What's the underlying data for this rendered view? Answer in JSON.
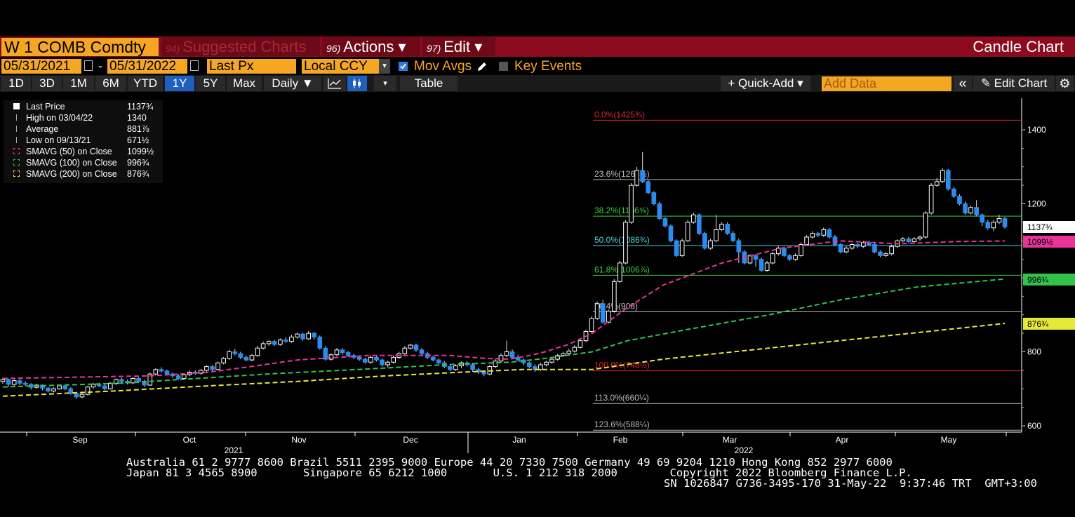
{
  "header": {
    "ticker": "W 1 COMB Comdty",
    "menus": [
      {
        "num": "94)",
        "label": "Suggested Charts"
      },
      {
        "num": "96)",
        "label": "Actions ▾"
      },
      {
        "num": "97)",
        "label": "Edit ▾"
      }
    ],
    "chart_type_label": "Candle Chart"
  },
  "controls": {
    "start_date": "05/31/2021",
    "date_separator": "-",
    "end_date": "05/31/2022",
    "field": "Last Px",
    "currency": "Local CCY",
    "mov_avgs_label": "Mov Avgs",
    "key_events_label": "Key Events",
    "mov_avgs_checked": true,
    "key_events_checked": false
  },
  "toolbar": {
    "ranges": [
      "1D",
      "3D",
      "1M",
      "6M",
      "YTD",
      "1Y",
      "5Y",
      "Max"
    ],
    "selected_range": "1Y",
    "period": "Daily ▼",
    "table_label": "Table",
    "quick_add_label": "+ Quick-Add ▾",
    "add_data_placeholder": "Add Data",
    "collapse_glyph": "«",
    "edit_chart_label": "✎ Edit Chart",
    "settings_glyph": "⚙"
  },
  "legend": [
    {
      "name": "Last Price",
      "value": "1137¾",
      "marker": "square",
      "color": "#ffffff"
    },
    {
      "name": "High on 03/04/22",
      "value": "1340",
      "marker": "high",
      "color": "#aaaaaa"
    },
    {
      "name": "Average",
      "value": "881⅞",
      "marker": "avg",
      "color": "#aaaaaa"
    },
    {
      "name": "Low on 09/13/21",
      "value": "671½",
      "marker": "low",
      "color": "#aaaaaa"
    },
    {
      "name": "SMAVG (50)  on Close",
      "value": "1099½",
      "marker": "box",
      "color": "#e8339b"
    },
    {
      "name": "SMAVG (100)  on Close",
      "value": "996¾",
      "marker": "box",
      "color": "#33c24d"
    },
    {
      "name": "SMAVG (200)  on Close",
      "value": "876¾",
      "marker": "box",
      "color": "#e8e83a"
    }
  ],
  "chart_data": {
    "type": "candlestick",
    "y_axis": {
      "min": 580,
      "max": 1440,
      "ticks": [
        600,
        800,
        1000,
        1200,
        1400
      ],
      "tick_labels": [
        "600",
        "800",
        "",
        "1200",
        "1400"
      ],
      "position": "right"
    },
    "x_axis": {
      "months": [
        "Sep",
        "Oct",
        "Nov",
        "Dec",
        "Jan",
        "Feb",
        "Mar",
        "Apr",
        "May"
      ],
      "years": [
        "2021",
        "2022"
      ]
    },
    "fibonacci": [
      {
        "label": "0.0%(1425¾)",
        "value": 1425.75,
        "color": "#e0203a"
      },
      {
        "label": "23.6%(1265½)",
        "value": 1265.5,
        "color": "#bbbbbb"
      },
      {
        "label": "38.2%(1166⅝)",
        "value": 1166.6,
        "color": "#3fcf3f"
      },
      {
        "label": "50.0%(1086¾)",
        "value": 1086.75,
        "color": "#4fd2e6"
      },
      {
        "label": "61.8%(1006⅞)",
        "value": 1006.9,
        "color": "#3fcf3f"
      },
      {
        "label": "76.4%(908)",
        "value": 908,
        "color": "#bbbbbb"
      },
      {
        "label": "100.0%(748½)",
        "value": 748.5,
        "color": "#e0203a"
      },
      {
        "label": "113.0%(660¼)",
        "value": 660.25,
        "color": "#bbbbbb"
      },
      {
        "label": "123.6%(588¼)",
        "value": 588.25,
        "color": "#bbbbbb"
      }
    ],
    "price_tags": [
      {
        "label": "1137¾",
        "value": 1137.75,
        "bg": "#ffffff",
        "fg": "#000000"
      },
      {
        "label": "1099½",
        "value": 1099.5,
        "bg": "#e8339b",
        "fg": "#000000"
      },
      {
        "label": "996¾",
        "value": 996.75,
        "bg": "#33c24d",
        "fg": "#000000"
      },
      {
        "label": "876¾",
        "value": 876.75,
        "bg": "#e8e83a",
        "fg": "#000000"
      }
    ],
    "colors": {
      "up": "#ffffff",
      "down": "#2a8cf0",
      "sma50": "#e8339b",
      "sma100": "#33c24d",
      "sma200": "#e8e83a"
    },
    "candles": [
      [
        720,
        725,
        730,
        714
      ],
      [
        725,
        712,
        728,
        706
      ],
      [
        712,
        722,
        726,
        708
      ],
      [
        722,
        715,
        726,
        710
      ],
      [
        715,
        712,
        720,
        708
      ],
      [
        712,
        704,
        715,
        698
      ],
      [
        704,
        710,
        714,
        700
      ],
      [
        710,
        702,
        712,
        696
      ],
      [
        702,
        694,
        705,
        690
      ],
      [
        694,
        700,
        704,
        690
      ],
      [
        700,
        708,
        712,
        698
      ],
      [
        708,
        700,
        712,
        696
      ],
      [
        700,
        688,
        704,
        684
      ],
      [
        688,
        678,
        692,
        672
      ],
      [
        678,
        685,
        690,
        674
      ],
      [
        685,
        705,
        708,
        682
      ],
      [
        705,
        712,
        716,
        700
      ],
      [
        712,
        708,
        716,
        704
      ],
      [
        708,
        700,
        712,
        696
      ],
      [
        700,
        715,
        718,
        698
      ],
      [
        715,
        725,
        728,
        710
      ],
      [
        725,
        720,
        730,
        716
      ],
      [
        720,
        716,
        724,
        712
      ],
      [
        716,
        728,
        732,
        712
      ],
      [
        728,
        720,
        732,
        716
      ],
      [
        720,
        710,
        724,
        706
      ],
      [
        710,
        740,
        744,
        708
      ],
      [
        740,
        752,
        756,
        736
      ],
      [
        752,
        748,
        758,
        744
      ],
      [
        748,
        740,
        752,
        736
      ],
      [
        740,
        735,
        744,
        730
      ],
      [
        735,
        728,
        740,
        724
      ],
      [
        728,
        738,
        742,
        724
      ],
      [
        738,
        745,
        750,
        734
      ],
      [
        745,
        742,
        750,
        738
      ],
      [
        742,
        750,
        754,
        738
      ],
      [
        750,
        760,
        764,
        746
      ],
      [
        760,
        752,
        764,
        748
      ],
      [
        752,
        770,
        774,
        750
      ],
      [
        770,
        782,
        786,
        766
      ],
      [
        782,
        800,
        806,
        778
      ],
      [
        800,
        795,
        808,
        790
      ],
      [
        795,
        785,
        800,
        780
      ],
      [
        785,
        778,
        790,
        774
      ],
      [
        778,
        790,
        794,
        774
      ],
      [
        790,
        810,
        816,
        786
      ],
      [
        810,
        822,
        828,
        806
      ],
      [
        822,
        828,
        832,
        816
      ],
      [
        828,
        820,
        832,
        816
      ],
      [
        820,
        832,
        836,
        816
      ],
      [
        832,
        828,
        840,
        824
      ],
      [
        828,
        840,
        846,
        824
      ],
      [
        840,
        848,
        852,
        836
      ],
      [
        848,
        835,
        852,
        830
      ],
      [
        835,
        850,
        856,
        832
      ],
      [
        850,
        840,
        854,
        832
      ],
      [
        840,
        810,
        844,
        806
      ],
      [
        810,
        780,
        816,
        776
      ],
      [
        780,
        792,
        796,
        776
      ],
      [
        792,
        805,
        810,
        788
      ],
      [
        805,
        798,
        810,
        792
      ],
      [
        798,
        790,
        802,
        786
      ],
      [
        790,
        785,
        795,
        780
      ],
      [
        785,
        780,
        790,
        776
      ],
      [
        780,
        772,
        784,
        768
      ],
      [
        772,
        785,
        790,
        768
      ],
      [
        785,
        778,
        790,
        774
      ],
      [
        778,
        765,
        782,
        760
      ],
      [
        765,
        772,
        776,
        758
      ],
      [
        772,
        785,
        790,
        768
      ],
      [
        785,
        795,
        800,
        780
      ],
      [
        795,
        810,
        816,
        790
      ],
      [
        810,
        818,
        822,
        806
      ],
      [
        818,
        805,
        822,
        800
      ],
      [
        805,
        795,
        810,
        790
      ],
      [
        795,
        785,
        800,
        780
      ],
      [
        785,
        778,
        790,
        774
      ],
      [
        778,
        770,
        782,
        765
      ],
      [
        770,
        760,
        775,
        756
      ],
      [
        760,
        752,
        766,
        748
      ],
      [
        752,
        762,
        766,
        748
      ],
      [
        762,
        770,
        774,
        756
      ],
      [
        770,
        765,
        775,
        760
      ],
      [
        765,
        752,
        770,
        746
      ],
      [
        752,
        745,
        756,
        740
      ],
      [
        745,
        740,
        750,
        734
      ],
      [
        740,
        760,
        764,
        736
      ],
      [
        760,
        775,
        780,
        756
      ],
      [
        775,
        790,
        796,
        770
      ],
      [
        790,
        800,
        830,
        786
      ],
      [
        800,
        785,
        806,
        780
      ],
      [
        785,
        778,
        792,
        774
      ],
      [
        778,
        770,
        782,
        764
      ],
      [
        770,
        760,
        774,
        756
      ],
      [
        760,
        752,
        766,
        746
      ],
      [
        752,
        765,
        770,
        748
      ],
      [
        765,
        772,
        776,
        760
      ],
      [
        772,
        780,
        786,
        768
      ],
      [
        780,
        790,
        794,
        776
      ],
      [
        790,
        795,
        800,
        786
      ],
      [
        795,
        802,
        808,
        790
      ],
      [
        802,
        812,
        818,
        798
      ],
      [
        812,
        830,
        836,
        808
      ],
      [
        830,
        855,
        860,
        826
      ],
      [
        855,
        890,
        896,
        850
      ],
      [
        890,
        930,
        936,
        886
      ],
      [
        930,
        880,
        940,
        876
      ],
      [
        880,
        910,
        914,
        876
      ],
      [
        910,
        990,
        996,
        906
      ],
      [
        990,
        1040,
        1046,
        986
      ],
      [
        1040,
        1150,
        1156,
        1036
      ],
      [
        1150,
        1250,
        1256,
        1146
      ],
      [
        1250,
        1290,
        1300,
        1246
      ],
      [
        1290,
        1260,
        1340,
        1256
      ],
      [
        1260,
        1230,
        1264,
        1226
      ],
      [
        1230,
        1200,
        1234,
        1196
      ],
      [
        1200,
        1160,
        1206,
        1156
      ],
      [
        1160,
        1140,
        1164,
        1136
      ],
      [
        1140,
        1100,
        1144,
        1096
      ],
      [
        1100,
        1060,
        1104,
        1056
      ],
      [
        1060,
        1100,
        1106,
        1056
      ],
      [
        1100,
        1150,
        1156,
        1096
      ],
      [
        1150,
        1170,
        1176,
        1146
      ],
      [
        1170,
        1120,
        1174,
        1116
      ],
      [
        1120,
        1080,
        1124,
        1076
      ],
      [
        1080,
        1100,
        1106,
        1076
      ],
      [
        1100,
        1130,
        1170,
        1096
      ],
      [
        1130,
        1145,
        1150,
        1126
      ],
      [
        1145,
        1120,
        1150,
        1116
      ],
      [
        1120,
        1100,
        1126,
        1096
      ],
      [
        1100,
        1070,
        1106,
        1040
      ],
      [
        1070,
        1040,
        1074,
        1036
      ],
      [
        1040,
        1060,
        1064,
        1036
      ],
      [
        1060,
        1050,
        1064,
        1030
      ],
      [
        1050,
        1020,
        1054,
        1016
      ],
      [
        1020,
        1040,
        1046,
        1016
      ],
      [
        1040,
        1065,
        1070,
        1036
      ],
      [
        1065,
        1080,
        1086,
        1060
      ],
      [
        1080,
        1060,
        1084,
        1056
      ],
      [
        1060,
        1050,
        1064,
        1046
      ],
      [
        1050,
        1060,
        1066,
        1046
      ],
      [
        1060,
        1090,
        1096,
        1056
      ],
      [
        1090,
        1110,
        1116,
        1086
      ],
      [
        1110,
        1120,
        1126,
        1106
      ],
      [
        1120,
        1115,
        1124,
        1110
      ],
      [
        1115,
        1130,
        1136,
        1110
      ],
      [
        1130,
        1110,
        1134,
        1106
      ],
      [
        1110,
        1090,
        1116,
        1086
      ],
      [
        1090,
        1070,
        1094,
        1066
      ],
      [
        1070,
        1080,
        1086,
        1066
      ],
      [
        1080,
        1090,
        1094,
        1076
      ],
      [
        1090,
        1085,
        1094,
        1080
      ],
      [
        1085,
        1095,
        1100,
        1080
      ],
      [
        1095,
        1090,
        1100,
        1086
      ],
      [
        1090,
        1070,
        1094,
        1066
      ],
      [
        1070,
        1060,
        1074,
        1056
      ],
      [
        1060,
        1065,
        1070,
        1056
      ],
      [
        1065,
        1085,
        1090,
        1060
      ],
      [
        1085,
        1100,
        1104,
        1080
      ],
      [
        1100,
        1105,
        1110,
        1096
      ],
      [
        1105,
        1098,
        1110,
        1094
      ],
      [
        1098,
        1105,
        1110,
        1094
      ],
      [
        1105,
        1110,
        1114,
        1100
      ],
      [
        1110,
        1175,
        1180,
        1106
      ],
      [
        1175,
        1250,
        1256,
        1170
      ],
      [
        1250,
        1260,
        1270,
        1246
      ],
      [
        1260,
        1290,
        1296,
        1256
      ],
      [
        1290,
        1240,
        1294,
        1236
      ],
      [
        1240,
        1220,
        1246,
        1216
      ],
      [
        1220,
        1200,
        1226,
        1196
      ],
      [
        1200,
        1175,
        1206,
        1170
      ],
      [
        1175,
        1190,
        1196,
        1170
      ],
      [
        1190,
        1170,
        1210,
        1166
      ],
      [
        1170,
        1150,
        1174,
        1140
      ],
      [
        1150,
        1135,
        1156,
        1130
      ],
      [
        1135,
        1150,
        1156,
        1126
      ],
      [
        1150,
        1160,
        1170,
        1145
      ],
      [
        1160,
        1137.75,
        1165,
        1133
      ]
    ],
    "sma": {
      "sma50": [
        [
          0,
          728
        ],
        [
          0.25,
          735
        ],
        [
          0.35,
          745
        ],
        [
          0.42,
          760
        ],
        [
          0.5,
          778
        ],
        [
          0.62,
          790
        ],
        [
          0.7,
          790
        ],
        [
          0.76,
          790
        ],
        [
          0.82,
          782
        ],
        [
          0.86,
          780
        ],
        [
          0.9,
          792
        ],
        [
          0.92,
          800
        ],
        [
          0.96,
          820
        ],
        [
          1.0,
          850
        ],
        [
          1.06,
          920
        ],
        [
          1.12,
          980
        ],
        [
          1.22,
          1040
        ],
        [
          1.32,
          1080
        ],
        [
          1.42,
          1100
        ],
        [
          1.52,
          1092
        ],
        [
          1.62,
          1098
        ],
        [
          1.7,
          1099.5
        ]
      ],
      "sma100": [
        [
          0,
          705
        ],
        [
          0.2,
          715
        ],
        [
          0.3,
          725
        ],
        [
          0.45,
          740
        ],
        [
          0.6,
          752
        ],
        [
          0.75,
          765
        ],
        [
          0.86,
          772
        ],
        [
          0.92,
          782
        ],
        [
          1.0,
          800
        ],
        [
          1.06,
          830
        ],
        [
          1.16,
          860
        ],
        [
          1.3,
          900
        ],
        [
          1.42,
          940
        ],
        [
          1.55,
          975
        ],
        [
          1.7,
          996.75
        ]
      ],
      "sma200": [
        [
          0,
          680
        ],
        [
          0.2,
          695
        ],
        [
          0.35,
          708
        ],
        [
          0.5,
          720
        ],
        [
          0.65,
          735
        ],
        [
          0.78,
          745
        ],
        [
          0.88,
          752
        ],
        [
          1.0,
          752
        ],
        [
          1.12,
          780
        ],
        [
          1.24,
          800
        ],
        [
          1.36,
          820
        ],
        [
          1.48,
          840
        ],
        [
          1.6,
          860
        ],
        [
          1.7,
          876.75
        ]
      ]
    }
  },
  "footer": {
    "line1": "Australia 61 2 9777 8600 Brazil 5511 2395 9000 Europe 44 20 7330 7500 Germany 49 69 9204 1210 Hong Kong 852 2977 6000",
    "line2": "Japan 81 3 4565 8900       Singapore 65 6212 1000       U.S. 1 212 318 2000        Copyright 2022 Bloomberg Finance L.P.",
    "line3": "SN 1026847 G736-3495-170 31-May-22  9:37:46 TRT  GMT+3:00"
  }
}
